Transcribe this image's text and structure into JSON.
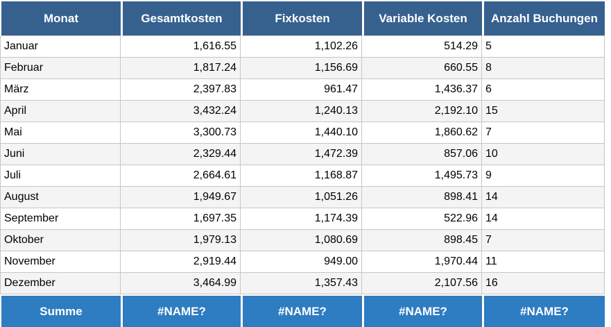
{
  "table": {
    "columns": [
      {
        "key": "monat",
        "label": "Monat",
        "align": "left"
      },
      {
        "key": "gesamtkosten",
        "label": "Gesamtkosten",
        "align": "right"
      },
      {
        "key": "fixkosten",
        "label": "Fixkosten",
        "align": "right"
      },
      {
        "key": "variable-kosten",
        "label": "Variable Kosten",
        "align": "right"
      },
      {
        "key": "anzahl-buchungen",
        "label": "Anzahl Buchungen",
        "align": "left"
      }
    ],
    "rows": [
      [
        "Januar",
        "1,616.55",
        "1,102.26",
        "514.29",
        "5"
      ],
      [
        "Februar",
        "1,817.24",
        "1,156.69",
        "660.55",
        "8"
      ],
      [
        "März",
        "2,397.83",
        "961.47",
        "1,436.37",
        "6"
      ],
      [
        "April",
        "3,432.24",
        "1,240.13",
        "2,192.10",
        "15"
      ],
      [
        "Mai",
        "3,300.73",
        "1,440.10",
        "1,860.62",
        "7"
      ],
      [
        "Juni",
        "2,329.44",
        "1,472.39",
        "857.06",
        "10"
      ],
      [
        "Juli",
        "2,664.61",
        "1,168.87",
        "1,495.73",
        "9"
      ],
      [
        "August",
        "1,949.67",
        "1,051.26",
        "898.41",
        "14"
      ],
      [
        "September",
        "1,697.35",
        "1,174.39",
        "522.96",
        "14"
      ],
      [
        "Oktober",
        "1,979.13",
        "1,080.69",
        "898.45",
        "7"
      ],
      [
        "November",
        "2,919.44",
        "949.00",
        "1,970.44",
        "11"
      ],
      [
        "Dezember",
        "3,464.99",
        "1,357.43",
        "2,107.56",
        "16"
      ]
    ],
    "footer": [
      "Summe",
      "#NAME?",
      "#NAME?",
      "#NAME?",
      "#NAME?"
    ],
    "colors": {
      "header_bg": "#36618F",
      "footer_bg": "#2E7CC1",
      "header_text": "#FFFFFF",
      "cell_text": "#000000",
      "row_bg": "#FFFFFF",
      "row_alt_bg": "#F4F4F4",
      "grid_line": "#C6C6C6"
    }
  }
}
